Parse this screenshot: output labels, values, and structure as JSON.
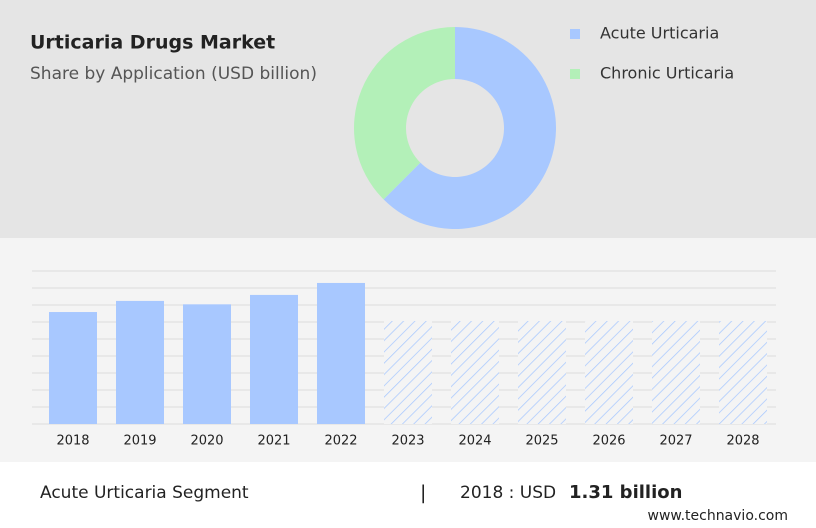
{
  "chart_data": [
    {
      "type": "donut",
      "title": "Urticaria Drugs Market",
      "subtitle": "Share by Application (USD billion)",
      "categories": [
        "Acute Urticaria",
        "Chronic Urticaria"
      ],
      "values": [
        62.5,
        37.5
      ],
      "colors": [
        "#a8c8ff",
        "#b3f0b8"
      ]
    },
    {
      "type": "bar",
      "categories": [
        "2018",
        "2019",
        "2020",
        "2021",
        "2022",
        "2023",
        "2024",
        "2025",
        "2026",
        "2027",
        "2028"
      ],
      "values": [
        1.31,
        1.44,
        1.4,
        1.51,
        1.65,
        null,
        null,
        null,
        null,
        null,
        null
      ],
      "color": "#a8c8ff",
      "ylim": [
        0,
        1.79
      ]
    }
  ],
  "footer": {
    "segment": "Acute Urticaria Segment",
    "separator": "|",
    "year_label": "2018 : USD",
    "value": "1.31 billion",
    "source": "www.technavio.com"
  }
}
